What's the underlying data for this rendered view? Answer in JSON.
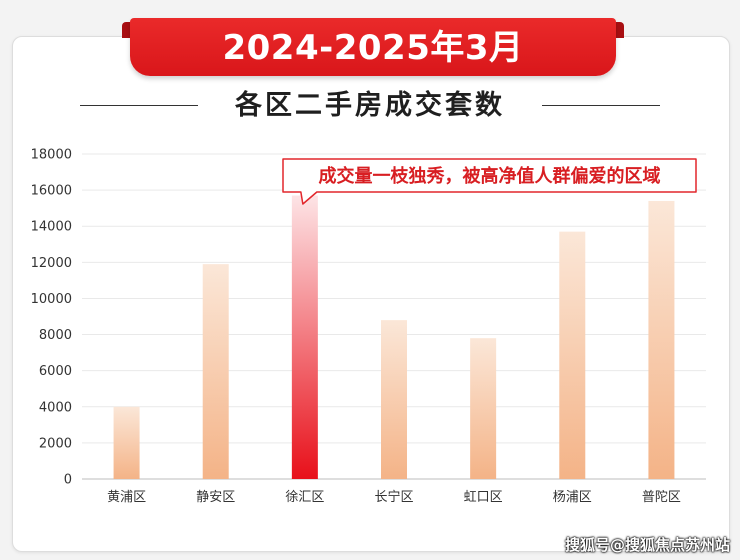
{
  "header": {
    "banner_title": "2024-2025年3月",
    "subtitle": "各区二手房成交套数"
  },
  "chart_data": {
    "type": "bar",
    "categories": [
      "黄浦区",
      "静安区",
      "徐汇区",
      "长宁区",
      "虹口区",
      "杨浦区",
      "普陀区"
    ],
    "values": [
      4000,
      11900,
      15700,
      8800,
      7800,
      13700,
      15400
    ],
    "highlight_index": 2,
    "ylim": [
      0,
      18000
    ],
    "yticks": [
      0,
      2000,
      4000,
      6000,
      8000,
      10000,
      12000,
      14000,
      16000,
      18000
    ],
    "grid": true,
    "annotation": "成交量一枝独秀，被高净值人群偏爱的区域",
    "colors": {
      "bar_top": "#fbe7d8",
      "bar_bottom": "#f4b387",
      "highlight_top": "#fde4e6",
      "highlight_bottom": "#e8101a",
      "annotation_border": "#e2262c",
      "annotation_text": "#d81e22"
    }
  },
  "watermark": "搜狐号@搜狐焦点苏州站",
  "colors": {
    "banner": "#e3201f",
    "banner_tab": "#a80f12"
  }
}
